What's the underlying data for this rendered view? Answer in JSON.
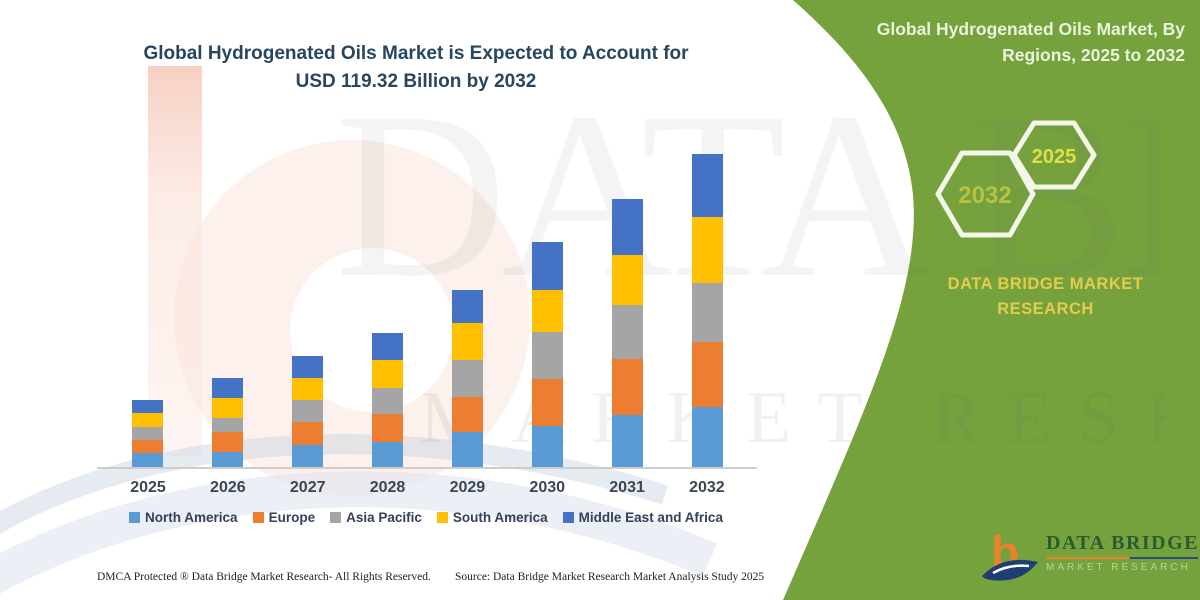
{
  "header": {
    "left_title_line1": "Global Hydrogenated Oils Market is Expected to Account for",
    "left_title_line2": "USD 119.32 Billion by 2032"
  },
  "chart_data": {
    "type": "bar",
    "stacked": true,
    "unit": "USD Billion",
    "title": "Global Hydrogenated Oils Market is Expected to Account for USD 119.32 Billion by 2032",
    "categories": [
      "2025",
      "2026",
      "2027",
      "2028",
      "2029",
      "2030",
      "2031",
      "2032"
    ],
    "series": [
      {
        "name": "North America",
        "color": "#5B9BD5",
        "values": [
          5.2,
          5.8,
          8.4,
          9.6,
          13.4,
          15.7,
          19.9,
          23.0
        ]
      },
      {
        "name": "Europe",
        "color": "#ED7D31",
        "values": [
          5.1,
          7.6,
          8.9,
          10.8,
          13.4,
          18.0,
          21.4,
          24.9
        ]
      },
      {
        "name": "Asia Pacific",
        "color": "#A5A5A5",
        "values": [
          5.1,
          5.2,
          8.3,
          9.6,
          14.1,
          18.0,
          20.6,
          22.2
        ]
      },
      {
        "name": "South America",
        "color": "#FFC000",
        "values": [
          5.2,
          7.7,
          8.3,
          10.8,
          14.1,
          15.8,
          19.1,
          25.2
        ]
      },
      {
        "name": "Middle East and Africa",
        "color": "#4472C4",
        "values": [
          5.0,
          7.6,
          8.6,
          10.2,
          12.8,
          18.2,
          21.4,
          24.02
        ]
      }
    ],
    "approx_totals": [
      25.6,
      33.9,
      42.5,
      51.0,
      67.8,
      85.7,
      102.4,
      119.32
    ],
    "ylim": [
      0,
      120
    ],
    "gridlines": false,
    "y_axis_labels_shown": false,
    "legend_position": "bottom"
  },
  "green_panel": {
    "color": "#75A23D",
    "title_line1": "Global Hydrogenated Oils Market, By",
    "title_line2": "Regions, 2025 to 2032",
    "hexagons": {
      "large_label": "2032",
      "small_label": "2025"
    },
    "brand_line1": "DATA BRIDGE MARKET",
    "brand_line2": "RESEARCH"
  },
  "logo": {
    "brand": "DATA BRIDGE",
    "tagline": "MARKET RESEARCH"
  },
  "watermarks": {
    "big_text": "DATA BRIDGE",
    "sub_text": "MARKET RESEARCH"
  },
  "footer": {
    "dmca": "DMCA Protected ® Data Bridge Market Research-  All Rights Reserved.",
    "source": "Source: Data Bridge Market Research  Market Analysis Study 2025"
  },
  "colors": {
    "left_title": "#28465F",
    "axis_text": "#3A4657",
    "panel_green": "#75A23D",
    "panel_title": "#E9F4DC",
    "panel_brand_yellow": "#E3CC4D",
    "hex_large_text": "#B5C244",
    "hex_small_text": "#E2DE48",
    "logo_orange": "#E8832C",
    "logo_navy": "#1F3E73",
    "logo_green_text": "#2A5C2F"
  }
}
